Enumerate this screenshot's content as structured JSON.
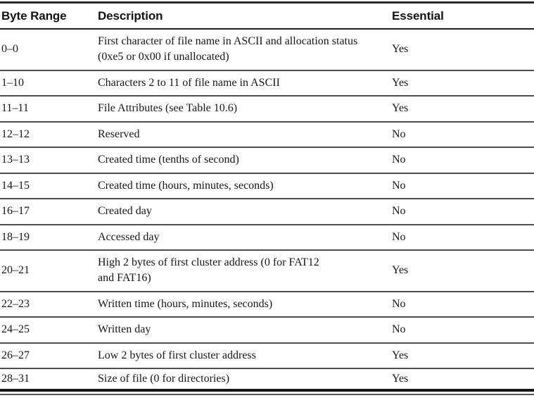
{
  "table": {
    "headers": {
      "byte_range": "Byte Range",
      "description": "Description",
      "essential": "Essential"
    },
    "rows": [
      {
        "byte_range": "0–0",
        "description": "First character of file name in ASCII and allocation status\n(0xe5 or 0x00 if unallocated)",
        "essential": "Yes"
      },
      {
        "byte_range": "1–10",
        "description": "Characters 2 to 11 of file name in ASCII",
        "essential": "Yes"
      },
      {
        "byte_range": "11–11",
        "description": "File Attributes (see Table 10.6)",
        "essential": "Yes"
      },
      {
        "byte_range": "12–12",
        "description": "Reserved",
        "essential": "No"
      },
      {
        "byte_range": "13–13",
        "description": "Created time (tenths of second)",
        "essential": "No"
      },
      {
        "byte_range": "14–15",
        "description": "Created time (hours, minutes, seconds)",
        "essential": "No"
      },
      {
        "byte_range": "16–17",
        "description": "Created day",
        "essential": "No"
      },
      {
        "byte_range": "18–19",
        "description": "Accessed day",
        "essential": "No"
      },
      {
        "byte_range": "20–21",
        "description": "High 2 bytes of first cluster address (0 for FAT12\nand FAT16)",
        "essential": "Yes"
      },
      {
        "byte_range": "22–23",
        "description": "Written time (hours, minutes, seconds)",
        "essential": "No"
      },
      {
        "byte_range": "24–25",
        "description": "Written day",
        "essential": "No"
      },
      {
        "byte_range": "26–27",
        "description": "Low 2 bytes of first cluster address",
        "essential": "Yes"
      },
      {
        "byte_range": "28–31",
        "description": "Size of file (0 for directories)",
        "essential": "Yes"
      }
    ]
  }
}
